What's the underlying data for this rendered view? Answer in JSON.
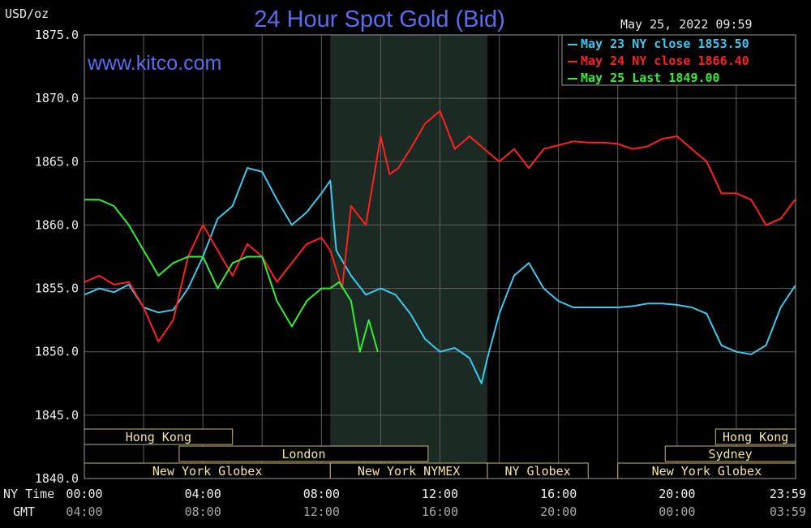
{
  "chart_data": {
    "type": "line",
    "title": "24 Hour Spot Gold (Bid)",
    "watermark": "www.kitco.com",
    "ylabel": "USD/oz",
    "timestamp": "May 25, 2022 09:59",
    "ylim": [
      1840,
      1875
    ],
    "xlim": [
      0,
      24
    ],
    "yticks": [
      "1875.0",
      "1870.0",
      "1865.0",
      "1860.0",
      "1855.0",
      "1850.0",
      "1845.0",
      "1840.0"
    ],
    "xticks_ny": [
      "00:00",
      "04:00",
      "08:00",
      "12:00",
      "16:00",
      "20:00",
      "23:59"
    ],
    "xticks_gmt": [
      "04:00",
      "08:00",
      "12:00",
      "16:00",
      "20:00",
      "00:00",
      "03:59"
    ],
    "x_row_labels": {
      "ny": "NY Time",
      "gmt": "GMT"
    },
    "grid": true,
    "shaded_region_hours": [
      8.3,
      13.6
    ],
    "legend": {
      "placement": "top-right",
      "entries": [
        {
          "label": "May 23 NY close 1853.50",
          "color": "#3ec8f0"
        },
        {
          "label": "May 24 NY close 1866.40",
          "color": "#ff2020"
        },
        {
          "label": "May 25 Last 1849.00",
          "color": "#30f030"
        }
      ]
    },
    "series": [
      {
        "name": "May 23 NY close 1853.50",
        "color": "#3ec8f0",
        "x": [
          0,
          0.5,
          1,
          1.5,
          2,
          2.5,
          3,
          3.5,
          4,
          4.5,
          5,
          5.5,
          6,
          6.5,
          7,
          7.5,
          8,
          8.3,
          8.5,
          9,
          9.5,
          10,
          10.5,
          11,
          11.5,
          12,
          12.5,
          13,
          13.4,
          13.6,
          14,
          14.5,
          15,
          15.5,
          16,
          16.5,
          17,
          17.5,
          18,
          18.5,
          19,
          19.5,
          20,
          20.5,
          21,
          21.5,
          22,
          22.5,
          23,
          23.5,
          23.98
        ],
        "y": [
          1854.5,
          1855,
          1854.7,
          1855.3,
          1853.5,
          1853.1,
          1853.3,
          1855,
          1857.5,
          1860.5,
          1861.5,
          1864.5,
          1864.2,
          1862,
          1860,
          1861,
          1862.5,
          1863.5,
          1858,
          1856,
          1854.5,
          1855,
          1854.5,
          1853,
          1851,
          1850,
          1850.3,
          1849.5,
          1847.5,
          1849.5,
          1853,
          1856,
          1857,
          1855,
          1854,
          1853.5,
          1853.5,
          1853.5,
          1853.5,
          1853.6,
          1853.8,
          1853.8,
          1853.7,
          1853.5,
          1853,
          1850.5,
          1850,
          1849.8,
          1850.5,
          1853.5,
          1855.2
        ]
      },
      {
        "name": "May 24 NY close 1866.40",
        "color": "#ff2020",
        "x": [
          0,
          0.5,
          1,
          1.5,
          2,
          2.5,
          3,
          3.5,
          4,
          4.5,
          5,
          5.5,
          6,
          6.5,
          7,
          7.5,
          8,
          8.3,
          8.7,
          9,
          9.5,
          10,
          10.3,
          10.6,
          11,
          11.5,
          12,
          12.5,
          13,
          13.5,
          14,
          14.5,
          15,
          15.5,
          16,
          16.5,
          17,
          17.5,
          18,
          18.5,
          19,
          19.5,
          20,
          20.5,
          21,
          21.5,
          22,
          22.5,
          23,
          23.5,
          23.98
        ],
        "y": [
          1855.5,
          1856,
          1855.3,
          1855.5,
          1853.5,
          1850.8,
          1852.5,
          1857.5,
          1860,
          1858,
          1856,
          1858.5,
          1857.5,
          1855.5,
          1857,
          1858.5,
          1859,
          1858,
          1855,
          1861.5,
          1860,
          1867,
          1864,
          1864.5,
          1866,
          1868,
          1869,
          1866,
          1867,
          1866,
          1865,
          1866,
          1864.5,
          1866,
          1866.3,
          1866.6,
          1866.5,
          1866.5,
          1866.4,
          1866,
          1866.2,
          1866.8,
          1867,
          1866,
          1865,
          1862.5,
          1862.5,
          1862,
          1860,
          1860.5,
          1862
        ]
      },
      {
        "name": "May 25 Last 1849.00",
        "color": "#30f030",
        "x": [
          0,
          0.5,
          1,
          1.5,
          2,
          2.5,
          3,
          3.5,
          4,
          4.5,
          5,
          5.5,
          6,
          6.5,
          7,
          7.5,
          8,
          8.3,
          8.6,
          9,
          9.3,
          9.6,
          9.9
        ],
        "y": [
          1862,
          1862,
          1861.5,
          1860,
          1858,
          1856,
          1857,
          1857.5,
          1857.5,
          1855,
          1857,
          1857.5,
          1857.5,
          1854,
          1852,
          1854,
          1855,
          1855,
          1855.5,
          1854,
          1850,
          1852.5,
          1850
        ]
      }
    ],
    "sessions": {
      "rows": [
        {
          "label": "Hong Kong",
          "bars": [
            {
              "start": 0,
              "end": 5
            },
            {
              "start": 21.3,
              "end": 24
            }
          ]
        },
        {
          "label": "London",
          "bars": [
            {
              "start": 3.2,
              "end": 11.6
            }
          ]
        },
        {
          "label": "Sydney",
          "bars": [
            {
              "start": 19.6,
              "end": 24
            }
          ]
        },
        {
          "label": "New York Globex",
          "bars": [
            {
              "start": 0,
              "end": 8.3
            },
            {
              "start": 18,
              "end": 24
            }
          ]
        },
        {
          "label": "New York NYMEX",
          "bars": [
            {
              "start": 8.3,
              "end": 13.6
            }
          ]
        },
        {
          "label": "NY Globex",
          "bars": [
            {
              "start": 13.6,
              "end": 17
            }
          ]
        }
      ]
    }
  }
}
